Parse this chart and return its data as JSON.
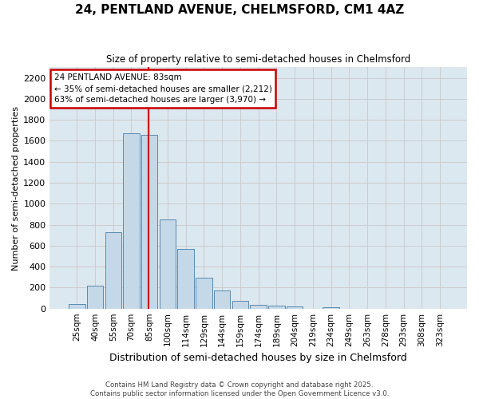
{
  "title": "24, PENTLAND AVENUE, CHELMSFORD, CM1 4AZ",
  "subtitle": "Size of property relative to semi-detached houses in Chelmsford",
  "xlabel": "Distribution of semi-detached houses by size in Chelmsford",
  "ylabel": "Number of semi-detached properties",
  "categories": [
    "25sqm",
    "40sqm",
    "55sqm",
    "70sqm",
    "85sqm",
    "100sqm",
    "114sqm",
    "129sqm",
    "144sqm",
    "159sqm",
    "174sqm",
    "189sqm",
    "204sqm",
    "219sqm",
    "234sqm",
    "249sqm",
    "263sqm",
    "278sqm",
    "293sqm",
    "308sqm",
    "323sqm"
  ],
  "values": [
    45,
    220,
    730,
    1670,
    1655,
    850,
    570,
    295,
    175,
    70,
    35,
    25,
    20,
    0,
    10,
    0,
    0,
    0,
    0,
    0,
    0
  ],
  "bar_color": "#c5d8e8",
  "bar_edge_color": "#5a8ab0",
  "red_line_x": 3.95,
  "annotation_title": "24 PENTLAND AVENUE: 83sqm",
  "annotation_line1": "← 35% of semi-detached houses are smaller (2,212)",
  "annotation_line2": "63% of semi-detached houses are larger (3,970) →",
  "annotation_box_edge": "#cc0000",
  "red_line_color": "#cc0000",
  "ylim": [
    0,
    2300
  ],
  "yticks": [
    0,
    200,
    400,
    600,
    800,
    1000,
    1200,
    1400,
    1600,
    1800,
    2000,
    2200
  ],
  "grid_color": "#cccccc",
  "bg_color": "#dce8f0",
  "footer_line1": "Contains HM Land Registry data © Crown copyright and database right 2025.",
  "footer_line2": "Contains public sector information licensed under the Open Government Licence v3.0."
}
